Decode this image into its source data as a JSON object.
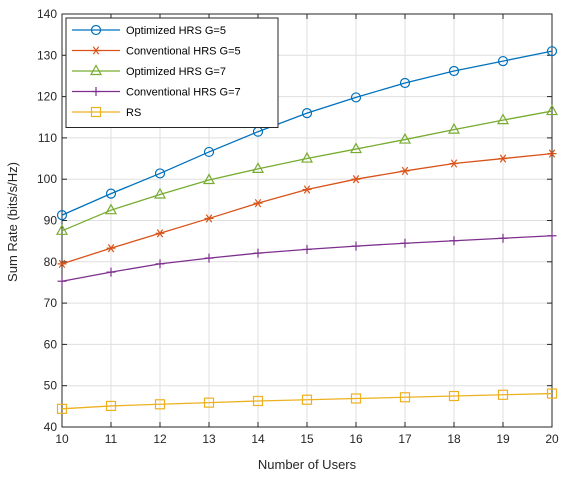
{
  "chart_data": {
    "type": "line",
    "xlabel": "Number of Users",
    "ylabel": "Sum Rate (bits/s/Hz)",
    "xlim": [
      10,
      20
    ],
    "ylim": [
      40,
      140
    ],
    "x_ticks": [
      10,
      11,
      12,
      13,
      14,
      15,
      16,
      17,
      18,
      19,
      20
    ],
    "y_ticks": [
      40,
      50,
      60,
      70,
      80,
      90,
      100,
      110,
      120,
      130,
      140
    ],
    "grid": true,
    "legend_position": "top-left",
    "x": [
      10,
      11,
      12,
      13,
      14,
      15,
      16,
      17,
      18,
      19,
      20
    ],
    "series": [
      {
        "name": "Optimized HRS G=5",
        "color": "#0072BD",
        "marker": "circle",
        "values": [
          91.3,
          96.5,
          101.4,
          106.6,
          111.5,
          116.0,
          119.8,
          123.3,
          126.2,
          128.6,
          131.0
        ]
      },
      {
        "name": "Conventional HRS G=5",
        "color": "#D95319",
        "marker": "asterisk",
        "values": [
          79.5,
          83.3,
          86.9,
          90.5,
          94.2,
          97.5,
          100.0,
          102.0,
          103.8,
          105.0,
          106.2
        ]
      },
      {
        "name": "Optimized HRS G=7",
        "color": "#77AC30",
        "marker": "triangle",
        "values": [
          87.5,
          92.5,
          96.3,
          99.8,
          102.5,
          105.0,
          107.3,
          109.6,
          112.0,
          114.3,
          116.5
        ]
      },
      {
        "name": "Conventional HRS G=7",
        "color": "#7E2F8E",
        "marker": "plus",
        "values": [
          75.3,
          77.5,
          79.5,
          80.9,
          82.1,
          83.0,
          83.8,
          84.5,
          85.1,
          85.7,
          86.3
        ]
      },
      {
        "name": "RS",
        "color": "#EDB120",
        "marker": "square",
        "values": [
          44.4,
          45.1,
          45.5,
          45.9,
          46.3,
          46.6,
          46.9,
          47.2,
          47.5,
          47.8,
          48.1
        ]
      }
    ]
  }
}
